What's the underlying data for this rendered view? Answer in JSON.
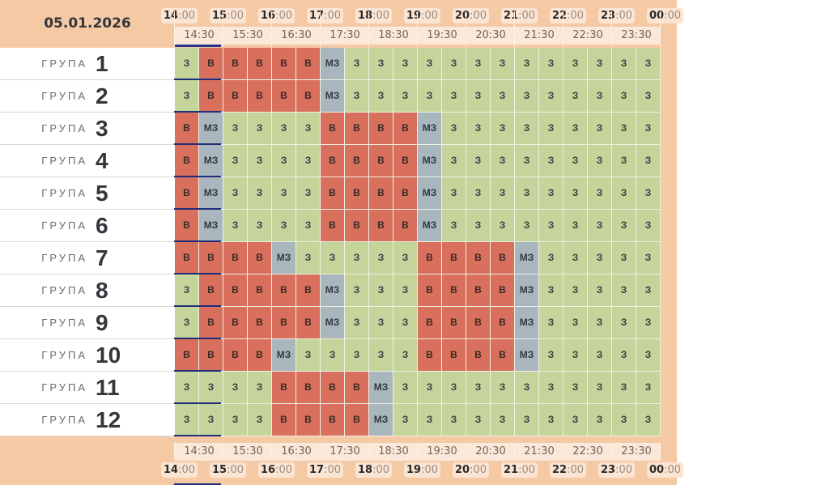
{
  "date": "05.01.2026",
  "hours": [
    {
      "h": "14",
      "m": ":00"
    },
    {
      "h": "15",
      "m": ":00"
    },
    {
      "h": "16",
      "m": ":00"
    },
    {
      "h": "17",
      "m": ":00"
    },
    {
      "h": "18",
      "m": ":00"
    },
    {
      "h": "19",
      "m": ":00"
    },
    {
      "h": "20",
      "m": ":00"
    },
    {
      "h": "21",
      "m": ":00"
    },
    {
      "h": "22",
      "m": ":00"
    },
    {
      "h": "23",
      "m": ":00"
    },
    {
      "h": "00",
      "m": ":00"
    }
  ],
  "half_hours": [
    "14:30",
    "15:30",
    "16:30",
    "17:30",
    "18:30",
    "19:30",
    "20:30",
    "21:30",
    "22:30",
    "23:30"
  ],
  "now_indicator": "•••",
  "group_word": "ГРУПА",
  "groups": [
    {
      "number": "1",
      "cells": [
        "З",
        "В",
        "В",
        "В",
        "В",
        "В",
        "МЗ",
        "З",
        "З",
        "З",
        "З",
        "З",
        "З",
        "З",
        "З",
        "З",
        "З",
        "З",
        "З",
        "З"
      ]
    },
    {
      "number": "2",
      "cells": [
        "З",
        "В",
        "В",
        "В",
        "В",
        "В",
        "МЗ",
        "З",
        "З",
        "З",
        "З",
        "З",
        "З",
        "З",
        "З",
        "З",
        "З",
        "З",
        "З",
        "З"
      ]
    },
    {
      "number": "3",
      "cells": [
        "В",
        "МЗ",
        "З",
        "З",
        "З",
        "З",
        "В",
        "В",
        "В",
        "В",
        "МЗ",
        "З",
        "З",
        "З",
        "З",
        "З",
        "З",
        "З",
        "З",
        "З"
      ]
    },
    {
      "number": "4",
      "cells": [
        "В",
        "МЗ",
        "З",
        "З",
        "З",
        "З",
        "В",
        "В",
        "В",
        "В",
        "МЗ",
        "З",
        "З",
        "З",
        "З",
        "З",
        "З",
        "З",
        "З",
        "З"
      ]
    },
    {
      "number": "5",
      "cells": [
        "В",
        "МЗ",
        "З",
        "З",
        "З",
        "З",
        "В",
        "В",
        "В",
        "В",
        "МЗ",
        "З",
        "З",
        "З",
        "З",
        "З",
        "З",
        "З",
        "З",
        "З"
      ]
    },
    {
      "number": "6",
      "cells": [
        "В",
        "МЗ",
        "З",
        "З",
        "З",
        "З",
        "В",
        "В",
        "В",
        "В",
        "МЗ",
        "З",
        "З",
        "З",
        "З",
        "З",
        "З",
        "З",
        "З",
        "З"
      ]
    },
    {
      "number": "7",
      "cells": [
        "В",
        "В",
        "В",
        "В",
        "МЗ",
        "З",
        "З",
        "З",
        "З",
        "З",
        "В",
        "В",
        "В",
        "В",
        "МЗ",
        "З",
        "З",
        "З",
        "З",
        "З"
      ]
    },
    {
      "number": "8",
      "cells": [
        "З",
        "В",
        "В",
        "В",
        "В",
        "В",
        "МЗ",
        "З",
        "З",
        "З",
        "В",
        "В",
        "В",
        "В",
        "МЗ",
        "З",
        "З",
        "З",
        "З",
        "З"
      ]
    },
    {
      "number": "9",
      "cells": [
        "З",
        "В",
        "В",
        "В",
        "В",
        "В",
        "МЗ",
        "З",
        "З",
        "З",
        "В",
        "В",
        "В",
        "В",
        "МЗ",
        "З",
        "З",
        "З",
        "З",
        "З"
      ]
    },
    {
      "number": "10",
      "cells": [
        "В",
        "В",
        "В",
        "В",
        "МЗ",
        "З",
        "З",
        "З",
        "З",
        "З",
        "В",
        "В",
        "В",
        "В",
        "МЗ",
        "З",
        "З",
        "З",
        "З",
        "З"
      ]
    },
    {
      "number": "11",
      "cells": [
        "З",
        "З",
        "З",
        "З",
        "В",
        "В",
        "В",
        "В",
        "МЗ",
        "З",
        "З",
        "З",
        "З",
        "З",
        "З",
        "З",
        "З",
        "З",
        "З",
        "З"
      ]
    },
    {
      "number": "12",
      "cells": [
        "З",
        "З",
        "З",
        "З",
        "В",
        "В",
        "В",
        "В",
        "МЗ",
        "З",
        "З",
        "З",
        "З",
        "З",
        "З",
        "З",
        "З",
        "З",
        "З",
        "З"
      ]
    }
  ],
  "colors": {
    "З": "#c5d49a",
    "В": "#d8705d",
    "МЗ": "#aab6be",
    "header_bg": "#f6c9a5",
    "now_indicator": "#23348c"
  }
}
